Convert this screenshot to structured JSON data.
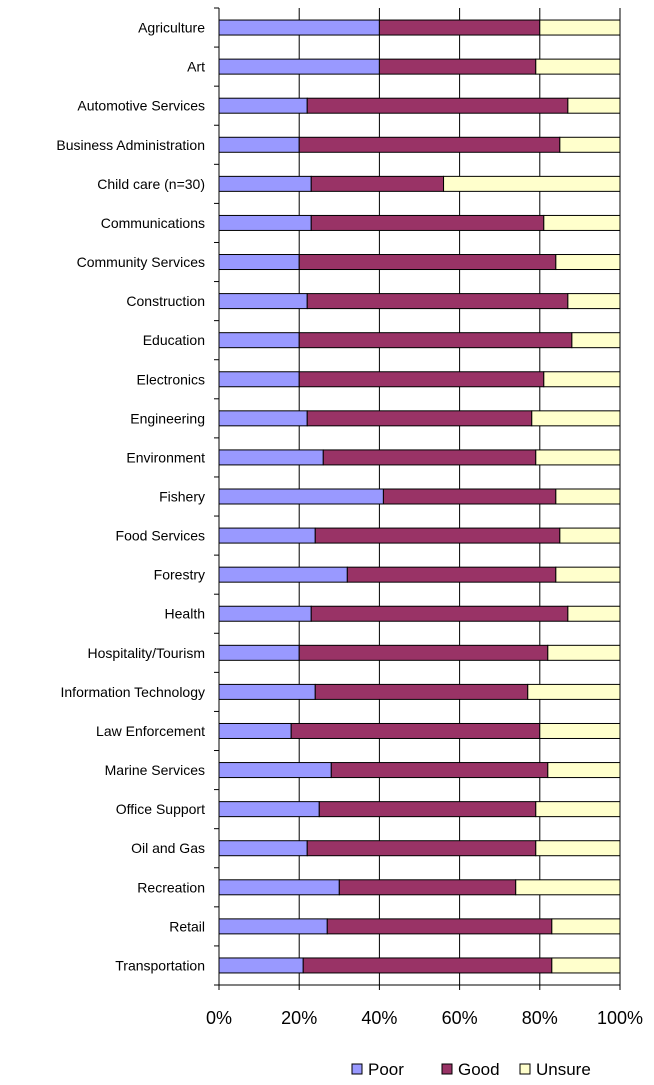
{
  "chart_data": {
    "type": "bar",
    "orientation": "horizontal",
    "stacked": true,
    "percent_stacked": true,
    "categories": [
      "Agriculture",
      "Art",
      "Automotive Services",
      "Business Administration",
      "Child care (n=30)",
      "Communications",
      "Community Services",
      "Construction",
      "Education",
      "Electronics",
      "Engineering",
      "Environment",
      "Fishery",
      "Food Services",
      "Forestry",
      "Health",
      "Hospitality/Tourism",
      "Information Technology",
      "Law Enforcement",
      "Marine Services",
      "Office Support",
      "Oil and Gas",
      "Recreation",
      "Retail",
      "Transportation"
    ],
    "series": [
      {
        "name": "Poor",
        "color": "#9999FF",
        "values": [
          40,
          40,
          22,
          20,
          23,
          23,
          20,
          22,
          20,
          20,
          22,
          26,
          41,
          24,
          32,
          23,
          20,
          24,
          18,
          28,
          25,
          22,
          30,
          27,
          21
        ]
      },
      {
        "name": "Good",
        "color": "#993366",
        "values": [
          40,
          39,
          65,
          65,
          33,
          58,
          64,
          65,
          68,
          61,
          56,
          53,
          43,
          61,
          52,
          64,
          62,
          53,
          62,
          54,
          54,
          57,
          44,
          56,
          62
        ]
      },
      {
        "name": "Unsure",
        "color": "#FFFFCC",
        "values": [
          20,
          21,
          13,
          15,
          44,
          19,
          16,
          13,
          12,
          19,
          22,
          21,
          16,
          15,
          16,
          13,
          18,
          23,
          20,
          18,
          21,
          21,
          26,
          17,
          17
        ]
      }
    ],
    "xlim": [
      0,
      100
    ],
    "x_ticks": [
      "0%",
      "20%",
      "40%",
      "60%",
      "80%",
      "100%"
    ],
    "grid": "vertical",
    "legend_position": "bottom"
  }
}
